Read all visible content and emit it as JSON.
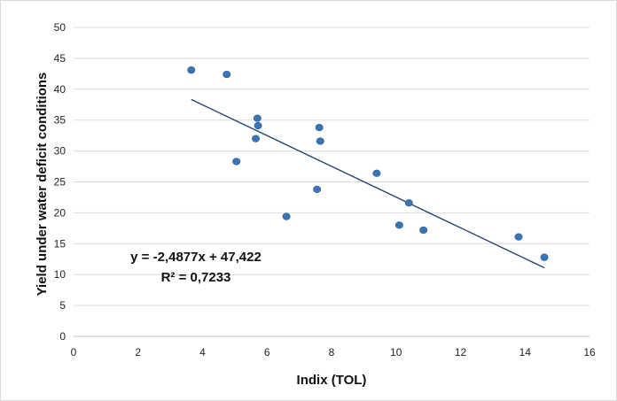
{
  "chart_data": {
    "type": "scatter",
    "title": "",
    "xlabel": "Indix (TOL)",
    "ylabel": "Yield under water deficit conditions",
    "xlim": [
      0,
      16
    ],
    "ylim": [
      0,
      50
    ],
    "xticks": [
      0,
      2,
      4,
      6,
      8,
      10,
      12,
      14,
      16
    ],
    "yticks": [
      0,
      5,
      10,
      15,
      20,
      25,
      30,
      35,
      40,
      45,
      50
    ],
    "grid": "horizontal",
    "legend": "none",
    "marker_color": "#3a74b4",
    "trendline_color": "#1f3f6b",
    "gridline_color": "#d9d9d9",
    "series": [
      {
        "points": [
          {
            "x": 3.65,
            "y": 43.1
          },
          {
            "x": 4.75,
            "y": 42.4
          },
          {
            "x": 5.05,
            "y": 28.3
          },
          {
            "x": 5.65,
            "y": 32.0
          },
          {
            "x": 5.7,
            "y": 35.3
          },
          {
            "x": 5.72,
            "y": 34.1
          },
          {
            "x": 6.6,
            "y": 19.4
          },
          {
            "x": 7.55,
            "y": 23.8
          },
          {
            "x": 7.62,
            "y": 33.8
          },
          {
            "x": 7.65,
            "y": 31.6
          },
          {
            "x": 9.4,
            "y": 26.4
          },
          {
            "x": 10.1,
            "y": 18.0
          },
          {
            "x": 10.4,
            "y": 21.6
          },
          {
            "x": 10.85,
            "y": 17.2
          },
          {
            "x": 13.8,
            "y": 16.1
          },
          {
            "x": 14.6,
            "y": 12.8
          }
        ]
      }
    ],
    "trendline": {
      "slope": -2.4877,
      "intercept": 47.422,
      "x_range": [
        3.65,
        14.6
      ],
      "equation_label": "y = -2,4877x + 47,422",
      "r2_label": "R² = 0,7233"
    }
  }
}
